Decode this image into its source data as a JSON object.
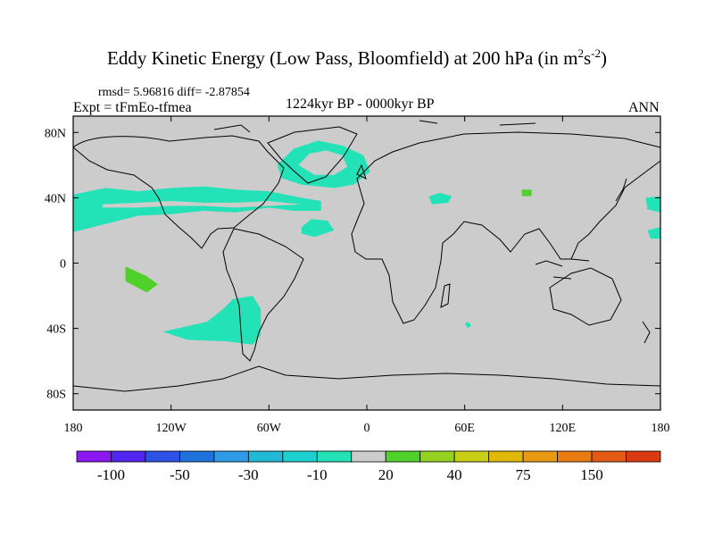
{
  "title": {
    "main": "Eddy Kinetic Energy (Low Pass, Bloomfield) at 200 hPa (in m",
    "sup1": "2",
    "mid": "s",
    "sup2": "-2",
    "end": ")"
  },
  "stats": "rmsd= 5.96816 diff= -2.87854",
  "expt": "Expt = tFmEo-tfmea",
  "period": "1224kyr BP - 0000kyr BP",
  "season": "ANN",
  "chart_data": {
    "type": "heatmap",
    "projection": "cylindrical-equidistant",
    "lon_range": [
      -180,
      180
    ],
    "lat_range": [
      -90,
      90
    ],
    "x_ticks": [
      {
        "value": -180,
        "label": "180"
      },
      {
        "value": -120,
        "label": "120W"
      },
      {
        "value": -60,
        "label": "60W"
      },
      {
        "value": 0,
        "label": "0"
      },
      {
        "value": 60,
        "label": "60E"
      },
      {
        "value": 120,
        "label": "120E"
      },
      {
        "value": 180,
        "label": "180"
      }
    ],
    "y_ticks": [
      {
        "value": 80,
        "label": "80N"
      },
      {
        "value": 40,
        "label": "40N"
      },
      {
        "value": 0,
        "label": "0"
      },
      {
        "value": -40,
        "label": "40S"
      },
      {
        "value": -80,
        "label": "80S"
      }
    ],
    "background_color": "#cccccc",
    "colorbar": {
      "colors": [
        "#8b18f0",
        "#5226f0",
        "#2e52e6",
        "#1f72dc",
        "#2f9ae6",
        "#22b9d6",
        "#1dd0d0",
        "#24e2b8",
        "#cccccc",
        "#4fd02a",
        "#94d222",
        "#c9cf14",
        "#e0b808",
        "#e89a10",
        "#ea7a12",
        "#e25a14",
        "#d93a12"
      ],
      "tick_labels": [
        {
          "after_box": 1,
          "label": "-100"
        },
        {
          "after_box": 3,
          "label": "-50"
        },
        {
          "after_box": 5,
          "label": "-30"
        },
        {
          "after_box": 7,
          "label": "-10"
        },
        {
          "after_box": 9,
          "label": "20"
        },
        {
          "after_box": 11,
          "label": "40"
        },
        {
          "after_box": 13,
          "label": "75"
        },
        {
          "after_box": 15,
          "label": "150"
        }
      ]
    },
    "regions": [
      {
        "name": "north-pacific-band",
        "value": -10,
        "color": "#24e2b8",
        "poly": [
          [
            -180,
            42
          ],
          [
            -160,
            46
          ],
          [
            -140,
            44
          ],
          [
            -120,
            46
          ],
          [
            -100,
            47
          ],
          [
            -80,
            45
          ],
          [
            -60,
            44
          ],
          [
            -40,
            40
          ],
          [
            -28,
            38
          ],
          [
            -28,
            32
          ],
          [
            -45,
            32
          ],
          [
            -60,
            34
          ],
          [
            -80,
            31
          ],
          [
            -100,
            32
          ],
          [
            -120,
            30
          ],
          [
            -140,
            29
          ],
          [
            -160,
            24
          ],
          [
            -180,
            19
          ]
        ]
      },
      {
        "name": "pacific-band-inner-gap",
        "value": 0,
        "color": "#cccccc",
        "poly": [
          [
            -162,
            36
          ],
          [
            -140,
            37
          ],
          [
            -120,
            38
          ],
          [
            -100,
            37
          ],
          [
            -80,
            37
          ],
          [
            -60,
            38
          ],
          [
            -40,
            36
          ],
          [
            -60,
            35
          ],
          [
            -80,
            34
          ],
          [
            -100,
            35
          ],
          [
            -120,
            35
          ],
          [
            -140,
            34
          ],
          [
            -162,
            34
          ]
        ]
      },
      {
        "name": "north-atlantic-ring",
        "value": -10,
        "color": "#24e2b8",
        "poly": [
          [
            -55,
            60
          ],
          [
            -45,
            70
          ],
          [
            -30,
            75
          ],
          [
            -15,
            72
          ],
          [
            -2,
            66
          ],
          [
            2,
            56
          ],
          [
            -8,
            48
          ],
          [
            -20,
            46
          ],
          [
            -40,
            48
          ],
          [
            -52,
            52
          ]
        ]
      },
      {
        "name": "north-atlantic-ring-hole",
        "value": 0,
        "color": "#cccccc",
        "poly": [
          [
            -42,
            60
          ],
          [
            -35,
            67
          ],
          [
            -25,
            69
          ],
          [
            -15,
            66
          ],
          [
            -12,
            59
          ],
          [
            -20,
            54
          ],
          [
            -32,
            54
          ]
        ]
      },
      {
        "name": "north-atlantic-patch",
        "value": -10,
        "color": "#24e2b8",
        "poly": [
          [
            -40,
            22
          ],
          [
            -34,
            27
          ],
          [
            -24,
            26
          ],
          [
            -20,
            20
          ],
          [
            -32,
            16
          ],
          [
            -40,
            18
          ]
        ]
      },
      {
        "name": "central-asia-patch",
        "value": -10,
        "color": "#24e2b8",
        "poly": [
          [
            38,
            41
          ],
          [
            45,
            43
          ],
          [
            52,
            41
          ],
          [
            50,
            37
          ],
          [
            40,
            36
          ]
        ]
      },
      {
        "name": "east-asia-positive",
        "value": 20,
        "color": "#4fd02a",
        "poly": [
          [
            95,
            45
          ],
          [
            101,
            45
          ],
          [
            101,
            41
          ],
          [
            95,
            41
          ]
        ]
      },
      {
        "name": "dateline-east-patch",
        "value": -10,
        "color": "#24e2b8",
        "poly": [
          [
            171,
            40
          ],
          [
            180,
            41
          ],
          [
            180,
            31
          ],
          [
            172,
            33
          ]
        ]
      },
      {
        "name": "dateline-east-patch-2",
        "value": -10,
        "color": "#24e2b8",
        "poly": [
          [
            172,
            20
          ],
          [
            180,
            22
          ],
          [
            180,
            15
          ],
          [
            174,
            15
          ]
        ]
      },
      {
        "name": "south-pacific-positive",
        "value": 20,
        "color": "#4fd02a",
        "poly": [
          [
            -148,
            -2
          ],
          [
            -135,
            -8
          ],
          [
            -128,
            -13
          ],
          [
            -135,
            -18
          ],
          [
            -148,
            -11
          ]
        ]
      },
      {
        "name": "south-pacific-band",
        "value": -10,
        "color": "#24e2b8",
        "poly": [
          [
            -125,
            -42
          ],
          [
            -98,
            -36
          ],
          [
            -88,
            -28
          ],
          [
            -82,
            -22
          ],
          [
            -70,
            -20
          ],
          [
            -65,
            -28
          ],
          [
            -65,
            -44
          ],
          [
            -70,
            -50
          ],
          [
            -85,
            -48
          ],
          [
            -110,
            -47
          ]
        ]
      },
      {
        "name": "south-atlantic-speck",
        "value": -10,
        "color": "#24e2b8",
        "poly": [
          [
            60,
            -37
          ],
          [
            62,
            -36
          ],
          [
            64,
            -38
          ],
          [
            62,
            -40
          ]
        ]
      }
    ]
  }
}
